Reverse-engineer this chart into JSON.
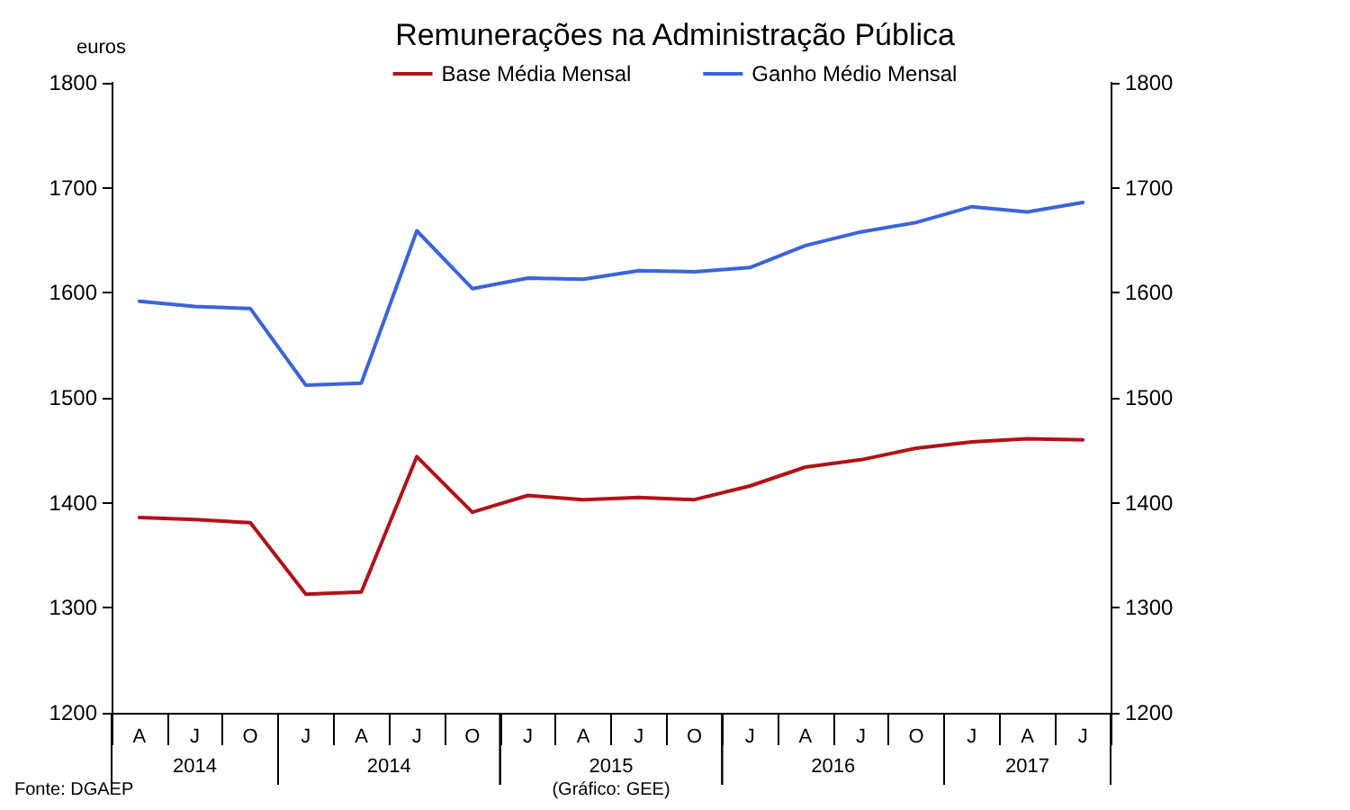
{
  "chart_data": {
    "type": "line",
    "title": "Remunerações na Administração Pública",
    "ylabel": "euros",
    "categories": [
      "A",
      "J",
      "O",
      "J",
      "A",
      "J",
      "O",
      "J",
      "A",
      "J",
      "O",
      "J",
      "A",
      "J",
      "O",
      "J",
      "A",
      "J"
    ],
    "series": [
      {
        "name": "Base Média Mensal",
        "color": "#b01217",
        "values": [
          1386,
          1384,
          1381,
          1313,
          1315,
          1444,
          1391,
          1407,
          1403,
          1405,
          1403,
          1416,
          1434,
          1441,
          1452,
          1458,
          1461,
          1460
        ]
      },
      {
        "name": "Ganho Médio Mensal",
        "color": "#3b64db",
        "values": [
          1592,
          1587,
          1585,
          1512,
          1514,
          1659,
          1604,
          1614,
          1613,
          1621,
          1620,
          1624,
          1645,
          1658,
          1667,
          1682,
          1677,
          1686
        ]
      }
    ],
    "ylim": [
      1200,
      1800
    ],
    "yticks": [
      1200,
      1300,
      1400,
      1500,
      1600,
      1700,
      1800
    ],
    "y2lim": [
      1200,
      1800
    ],
    "y2ticks": [
      1200,
      1300,
      1400,
      1500,
      1600,
      1700,
      1800
    ],
    "annotations": [
      "2014",
      "2014",
      "2015",
      "2016",
      "2017",
      "Fonte: DGAEP",
      "(Gráfico: GEE)"
    ],
    "legend": "top",
    "grid": false,
    "marker": "none",
    "line_style": "solid"
  }
}
